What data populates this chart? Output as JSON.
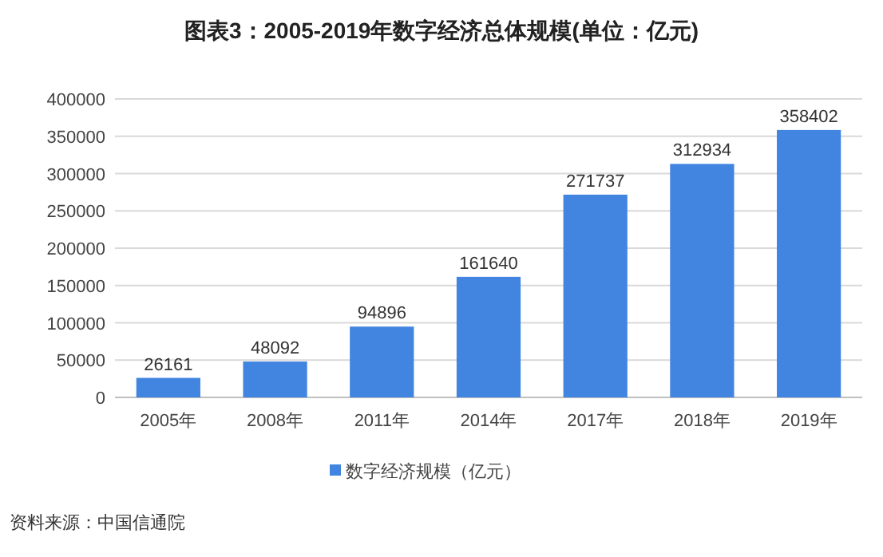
{
  "chart_data": {
    "type": "bar",
    "title": "图表3：2005-2019年数字经济总体规模(单位：亿元)",
    "categories": [
      "2005年",
      "2008年",
      "2011年",
      "2014年",
      "2017年",
      "2018年",
      "2019年"
    ],
    "series": [
      {
        "name": "数字经济规模（亿元）",
        "color": "#4285e0",
        "values": [
          26161,
          48092,
          94896,
          161640,
          271737,
          312934,
          358402
        ]
      }
    ],
    "ylim": [
      0,
      400000
    ],
    "yticks": [
      0,
      50000,
      100000,
      150000,
      200000,
      250000,
      300000,
      350000,
      400000
    ],
    "grid": "y",
    "data_labels": true,
    "legend": "bottom",
    "annotations": [
      "资料来源：中国信通院"
    ]
  }
}
